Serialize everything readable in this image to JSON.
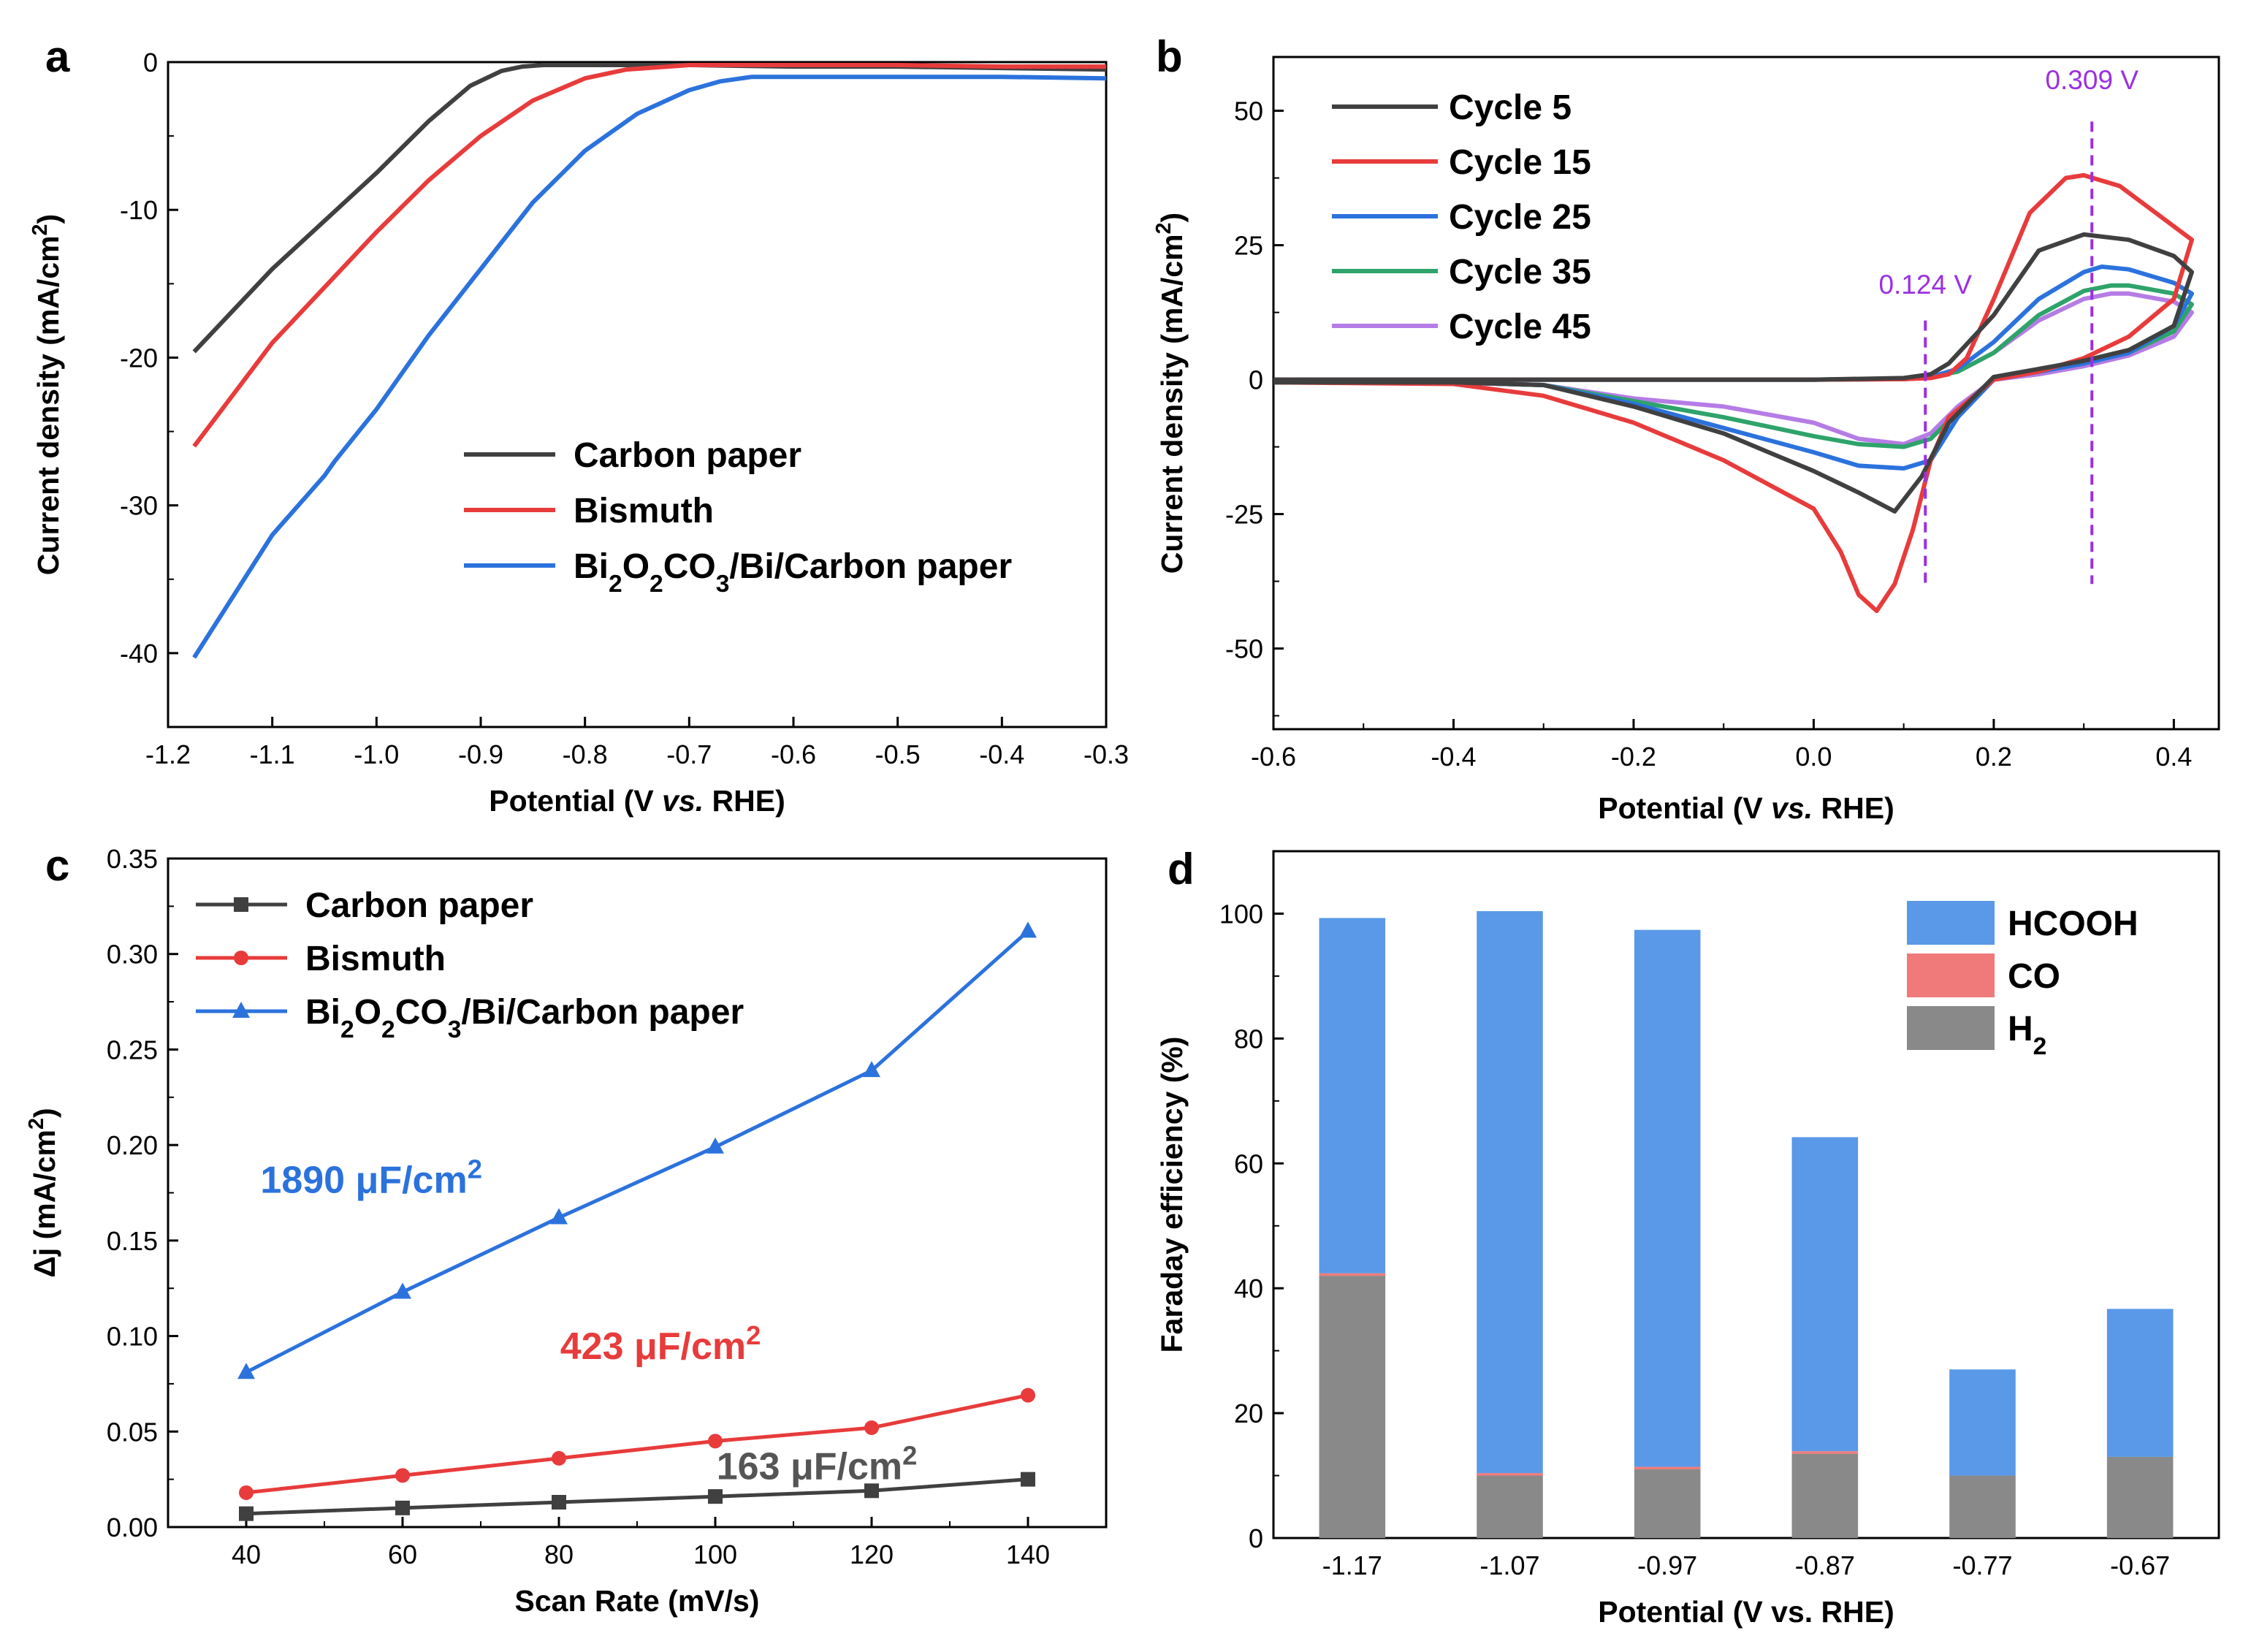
{
  "chart_data": [
    {
      "panel": "a",
      "type": "line",
      "xlabel": "Potential (V vs. RHE)",
      "ylabel": "Current density (mA/cm²)",
      "xlim": [
        -1.2,
        -0.3
      ],
      "ylim": [
        -45,
        0
      ],
      "xticks": [
        -1.2,
        -1.1,
        -1.0,
        -0.9,
        -0.8,
        -0.7,
        -0.6,
        -0.5,
        -0.4,
        -0.3
      ],
      "xtick_labels": [
        "-1.2",
        "-1.1",
        "-1.0",
        "-0.9",
        "-0.8",
        "-0.7",
        "-0.6",
        "-0.5",
        "-0.4",
        "-0.3"
      ],
      "yticks": [
        0,
        -10,
        -20,
        -30,
        -40
      ],
      "ytick_labels": [
        "0",
        "-10",
        "-20",
        "-30",
        "-40"
      ],
      "legend": "center-right",
      "series": [
        {
          "name": "Carbon paper",
          "color": "#404040",
          "x": [
            -1.175,
            -1.1,
            -1.0,
            -0.95,
            -0.91,
            -0.88,
            -0.86,
            -0.84,
            -0.8,
            -0.7,
            -0.6,
            -0.5,
            -0.4,
            -0.3
          ],
          "y": [
            -19.6,
            -14.0,
            -7.5,
            -4.0,
            -1.6,
            -0.6,
            -0.3,
            -0.2,
            -0.2,
            -0.2,
            -0.3,
            -0.3,
            -0.4,
            -0.5
          ]
        },
        {
          "name": "Bismuth",
          "color": "#e83b3b",
          "x": [
            -1.175,
            -1.1,
            -1.0,
            -0.95,
            -0.9,
            -0.85,
            -0.8,
            -0.76,
            -0.72,
            -0.7,
            -0.6,
            -0.5,
            -0.4,
            -0.3
          ],
          "y": [
            -26.0,
            -19.0,
            -11.5,
            -8.0,
            -5.0,
            -2.6,
            -1.1,
            -0.5,
            -0.3,
            -0.2,
            -0.2,
            -0.2,
            -0.3,
            -0.3
          ]
        },
        {
          "name": "Bi₂O₂CO₃/Bi/Carbon paper",
          "color": "#2b72dd",
          "x": [
            -1.175,
            -1.1,
            -1.05,
            -1.04,
            -1.0,
            -0.95,
            -0.9,
            -0.85,
            -0.8,
            -0.75,
            -0.7,
            -0.67,
            -0.64,
            -0.6,
            -0.5,
            -0.4,
            -0.3
          ],
          "y": [
            -40.3,
            -32.0,
            -28.0,
            -27.0,
            -23.5,
            -18.5,
            -14.0,
            -9.5,
            -6.0,
            -3.5,
            -1.9,
            -1.3,
            -1.0,
            -1.0,
            -1.0,
            -1.0,
            -1.1
          ]
        }
      ]
    },
    {
      "panel": "b",
      "type": "line",
      "xlabel": "Potential (V vs. RHE)",
      "ylabel": "Current density (mA/cm²)",
      "xlim": [
        -0.6,
        0.45
      ],
      "ylim": [
        -65,
        60
      ],
      "xticks": [
        -0.6,
        -0.4,
        -0.2,
        0.0,
        0.2,
        0.4
      ],
      "xtick_labels": [
        "-0.6",
        "-0.4",
        "-0.2",
        "0.0",
        "0.2",
        "0.4"
      ],
      "yticks": [
        50,
        25,
        0,
        -25,
        -50
      ],
      "ytick_labels": [
        "50",
        "25",
        "0",
        "-25",
        "-50"
      ],
      "legend": "top-left",
      "annotations": [
        {
          "text": "0.124 V",
          "x": 0.124,
          "y": 16
        },
        {
          "text": "0.309 V",
          "x": 0.309,
          "y": 54
        }
      ],
      "vlines": [
        0.124,
        0.309
      ],
      "series": [
        {
          "name": "Cycle 5",
          "color": "#404040",
          "x": [
            -0.6,
            -0.4,
            -0.3,
            -0.2,
            -0.1,
            0.0,
            0.05,
            0.09,
            0.12,
            0.15,
            0.2,
            0.25,
            0.3,
            0.35,
            0.4,
            0.42,
            0.42,
            0.4,
            0.35,
            0.3,
            0.25,
            0.2,
            0.15,
            0.13,
            0.1,
            0.0,
            -0.2,
            -0.4,
            -0.6
          ],
          "y": [
            -0.5,
            -0.5,
            -1.0,
            -5.0,
            -10.0,
            -17.0,
            -21.0,
            -24.5,
            -18.0,
            -8.0,
            0.5,
            2.0,
            3.5,
            5.5,
            10.0,
            20.0,
            20.0,
            23.0,
            26.0,
            27.0,
            24.0,
            12.0,
            3.0,
            1.0,
            0.3,
            0.0,
            0.0,
            0.0,
            0.0
          ]
        },
        {
          "name": "Cycle 15",
          "color": "#e83b3b",
          "x": [
            -0.6,
            -0.4,
            -0.3,
            -0.2,
            -0.1,
            0.0,
            0.03,
            0.05,
            0.07,
            0.09,
            0.11,
            0.13,
            0.15,
            0.2,
            0.25,
            0.3,
            0.35,
            0.4,
            0.42,
            0.42,
            0.38,
            0.34,
            0.3,
            0.28,
            0.24,
            0.2,
            0.17,
            0.15,
            0.13,
            0.1,
            0.0,
            -0.2,
            -0.4,
            -0.6
          ],
          "y": [
            -0.5,
            -0.8,
            -3.0,
            -8.0,
            -15.0,
            -24.0,
            -32.0,
            -40.0,
            -43.0,
            -38.0,
            -28.0,
            -15.0,
            -7.0,
            0.0,
            1.5,
            4.0,
            8.0,
            15.0,
            26.0,
            26.0,
            31.0,
            36.0,
            38.0,
            37.5,
            31.0,
            15.0,
            4.0,
            1.0,
            0.3,
            0.1,
            0.0,
            0.0,
            0.0,
            0.0
          ]
        },
        {
          "name": "Cycle 25",
          "color": "#2b72dd",
          "x": [
            -0.6,
            -0.4,
            -0.3,
            -0.2,
            -0.1,
            0.0,
            0.05,
            0.1,
            0.13,
            0.16,
            0.2,
            0.25,
            0.3,
            0.35,
            0.4,
            0.42,
            0.42,
            0.4,
            0.35,
            0.32,
            0.3,
            0.25,
            0.2,
            0.16,
            0.13,
            0.1,
            0.0,
            -0.2,
            -0.4,
            -0.6
          ],
          "y": [
            -0.5,
            -0.5,
            -1.0,
            -4.5,
            -9.0,
            -13.5,
            -16.0,
            -16.5,
            -15.0,
            -7.0,
            0.0,
            1.5,
            3.0,
            5.0,
            10.0,
            16.0,
            16.0,
            18.0,
            20.5,
            21.0,
            20.0,
            15.0,
            7.0,
            2.0,
            0.5,
            0.2,
            0.0,
            0.0,
            0.0,
            0.0
          ]
        },
        {
          "name": "Cycle 35",
          "color": "#2ea36a",
          "x": [
            -0.6,
            -0.4,
            -0.3,
            -0.2,
            -0.1,
            0.0,
            0.05,
            0.1,
            0.13,
            0.16,
            0.2,
            0.25,
            0.3,
            0.35,
            0.4,
            0.42,
            0.42,
            0.4,
            0.35,
            0.33,
            0.3,
            0.25,
            0.2,
            0.16,
            0.13,
            0.1,
            0.0,
            -0.2,
            -0.4,
            -0.6
          ],
          "y": [
            -0.5,
            -0.5,
            -1.0,
            -4.0,
            -7.0,
            -10.5,
            -12.0,
            -12.5,
            -11.0,
            -6.0,
            0.0,
            1.5,
            3.0,
            5.0,
            9.0,
            14.0,
            14.0,
            16.0,
            17.5,
            17.5,
            16.5,
            12.0,
            5.0,
            1.5,
            0.4,
            0.1,
            0.0,
            0.0,
            0.0,
            0.0
          ]
        },
        {
          "name": "Cycle 45",
          "color": "#b57ce6",
          "x": [
            -0.6,
            -0.4,
            -0.3,
            -0.2,
            -0.1,
            0.0,
            0.05,
            0.1,
            0.13,
            0.16,
            0.2,
            0.25,
            0.3,
            0.35,
            0.4,
            0.42,
            0.42,
            0.4,
            0.35,
            0.33,
            0.3,
            0.25,
            0.2,
            0.16,
            0.13,
            0.1,
            0.0,
            -0.2,
            -0.4,
            -0.6
          ],
          "y": [
            -0.5,
            -0.5,
            -1.0,
            -3.5,
            -5.0,
            -8.0,
            -11.0,
            -12.0,
            -10.0,
            -5.0,
            0.0,
            1.0,
            2.5,
            4.5,
            8.0,
            12.5,
            12.5,
            14.5,
            16.0,
            16.0,
            15.0,
            11.0,
            5.0,
            1.5,
            0.4,
            0.1,
            0.0,
            0.0,
            0.0,
            0.0
          ]
        }
      ]
    },
    {
      "panel": "c",
      "type": "line",
      "xlabel": "Scan Rate (mV/s)",
      "ylabel": "Δj (mA/cm²)",
      "xlim": [
        30,
        150
      ],
      "ylim": [
        0,
        0.35
      ],
      "xticks": [
        40,
        60,
        80,
        100,
        120,
        140
      ],
      "xtick_labels": [
        "40",
        "60",
        "80",
        "100",
        "120",
        "140"
      ],
      "yticks": [
        0,
        0.05,
        0.1,
        0.15,
        0.2,
        0.25,
        0.3,
        0.35
      ],
      "ytick_labels": [
        "0.00",
        "0.05",
        "0.10",
        "0.15",
        "0.20",
        "0.25",
        "0.30",
        "0.35"
      ],
      "legend": "top-left",
      "annotations": [
        {
          "text": "1890 μF/cm",
          "sup": "2",
          "color": "#2b72dd",
          "x": 56,
          "y": 0.175
        },
        {
          "text": "423 μF/cm",
          "sup": "2",
          "color": "#e83b3b",
          "x": 93,
          "y": 0.088
        },
        {
          "text": "163 μF/cm",
          "sup": "2",
          "color": "#555555",
          "x": 113,
          "y": 0.025
        }
      ],
      "series": [
        {
          "name": "Carbon paper",
          "marker": "square",
          "color": "#404040",
          "x": [
            40,
            60,
            80,
            100,
            120,
            140
          ],
          "y": [
            0.007,
            0.01,
            0.013,
            0.016,
            0.019,
            0.025
          ]
        },
        {
          "name": "Bismuth",
          "marker": "circle",
          "color": "#e83b3b",
          "x": [
            40,
            60,
            80,
            100,
            120,
            140
          ],
          "y": [
            0.018,
            0.027,
            0.036,
            0.045,
            0.052,
            0.069
          ]
        },
        {
          "name": "Bi₂O₂CO₃/Bi/Carbon paper",
          "marker": "triangle",
          "color": "#2b72dd",
          "x": [
            40,
            60,
            80,
            100,
            120,
            140
          ],
          "y": [
            0.081,
            0.123,
            0.162,
            0.199,
            0.239,
            0.312
          ]
        }
      ]
    },
    {
      "panel": "d",
      "type": "bar",
      "xlabel": "Potential (V vs. RHE)",
      "ylabel": "Faraday efficiency (%)",
      "ylim": [
        0,
        110
      ],
      "yticks": [
        0,
        20,
        40,
        60,
        80,
        100
      ],
      "ytick_labels": [
        "0",
        "20",
        "40",
        "60",
        "80",
        "100"
      ],
      "categories": [
        "-1.17",
        "-1.07",
        "-0.97",
        "-0.87",
        "-0.77",
        "-0.67"
      ],
      "legend": "top-right",
      "series": [
        {
          "name": "H",
          "sub": "2",
          "color": "#898989",
          "values": [
            42.0,
            10.0,
            11.0,
            13.5,
            10.0,
            13.0
          ]
        },
        {
          "name": "CO",
          "color": "#f07a7a",
          "values": [
            0.4,
            0.4,
            0.4,
            0.4,
            0.0,
            0.0
          ]
        },
        {
          "name": "HCOOH",
          "color": "#5a98e8",
          "values": [
            56.9,
            90.0,
            86.0,
            50.3,
            17.0,
            23.7
          ]
        }
      ]
    }
  ],
  "panel_labels": [
    "a",
    "b",
    "c",
    "d"
  ]
}
